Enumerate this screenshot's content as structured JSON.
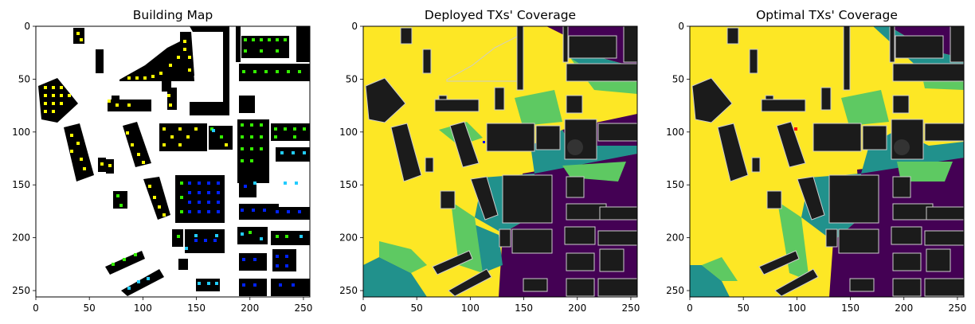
{
  "chart_data": [
    {
      "type": "heatmap",
      "title": "Building Map",
      "xlabel": "",
      "ylabel": "",
      "xlim": [
        0,
        256
      ],
      "ylim": [
        256,
        0
      ],
      "xticks": [
        0,
        50,
        100,
        150,
        200,
        250
      ],
      "yticks": [
        0,
        50,
        100,
        150,
        200,
        250
      ],
      "grid": false,
      "description_colors": {
        "background": "#ffffff",
        "building": "#000000",
        "marker_yellow": "#ffff00",
        "marker_green": "#33ee00",
        "marker_cyan": "#22ccff",
        "marker_blue": "#0022ff"
      }
    },
    {
      "type": "heatmap",
      "title": "Deployed TXs' Coverage",
      "xlabel": "",
      "ylabel": "",
      "xlim": [
        0,
        256
      ],
      "ylim": [
        256,
        0
      ],
      "xticks": [
        0,
        50,
        100,
        150,
        200,
        250
      ],
      "yticks": [
        0,
        50,
        100,
        150,
        200,
        250
      ],
      "grid": false,
      "colormap": [
        "#440154",
        "#21918c",
        "#5ec962",
        "#fde725"
      ]
    },
    {
      "type": "heatmap",
      "title": "Optimal TXs' Coverage",
      "xlabel": "",
      "ylabel": "",
      "xlim": [
        0,
        256
      ],
      "ylim": [
        256,
        0
      ],
      "xticks": [
        0,
        50,
        100,
        150,
        200,
        250
      ],
      "yticks": [
        0,
        50,
        100,
        150,
        200,
        250
      ],
      "grid": false,
      "colormap": [
        "#440154",
        "#21918c",
        "#5ec962",
        "#fde725"
      ]
    }
  ]
}
